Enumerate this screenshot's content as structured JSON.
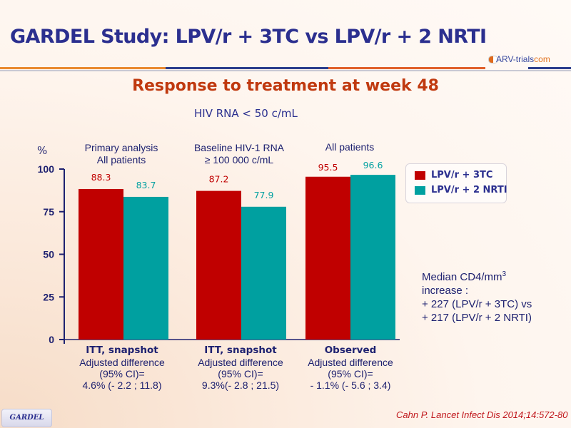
{
  "header": {
    "title": "GARDEL Study: LPV/r + 3TC vs LPV/r + 2 NRTI",
    "logo_text": "ARV-trials",
    "logo_suffix": "com"
  },
  "subtitle": "Response to treatment at week 48",
  "endpoint": "HIV RNA < 50 c/mL",
  "colors": {
    "title": "#2b2f8f",
    "subtitle": "#c0390f",
    "series_1": "#c00000",
    "series_2": "#00a0a0",
    "axis": "#1e2170",
    "rule_orange": "#e9892f",
    "rule_blue": "#2a3c8c"
  },
  "chart_data": {
    "type": "bar",
    "title": "Response to treatment at week 48",
    "subtitle": "HIV RNA < 50 c/mL",
    "ylabel": "%",
    "xlabel": "",
    "ylim": [
      0,
      100
    ],
    "yticks": [
      0,
      25,
      50,
      75,
      100
    ],
    "grid": false,
    "legend_position": "right",
    "group_titles": [
      [
        "Primary analysis",
        "All patients"
      ],
      [
        "Baseline HIV-1 RNA",
        "≥ 100 000 c/mL"
      ],
      [
        "All patients"
      ]
    ],
    "categories": [
      "ITT, snapshot",
      "ITT, snapshot",
      "Observed"
    ],
    "category_notes": [
      [
        "Adjusted difference",
        "(95% CI)=",
        "4.6% (- 2.2 ; 11.8)"
      ],
      [
        "Adjusted difference",
        "(95% CI)=",
        "9.3%(- 2.8 ; 21.5)"
      ],
      [
        "Adjusted difference",
        "(95% CI)=",
        "- 1.1% (- 5.6 ; 3.4)"
      ]
    ],
    "series": [
      {
        "name": "LPV/r + 3TC",
        "color": "#c00000",
        "values": [
          88.3,
          87.2,
          95.5
        ],
        "labels": [
          "88.3",
          "87.2",
          "95.5"
        ]
      },
      {
        "name": "LPV/r + 2 NRTI",
        "color": "#00a0a0",
        "values": [
          83.7,
          77.9,
          96.6
        ],
        "labels": [
          "83.7",
          "77.9",
          "96.6"
        ]
      }
    ]
  },
  "cd4_note": {
    "line1": "Median CD4/mm",
    "line1_sup": "3",
    "line2": "increase :",
    "line3": "+ 227 (LPV/r + 3TC) vs",
    "line4": "+ 217 (LPV/r + 2 NRTI)"
  },
  "footer": {
    "badge": "GARDEL",
    "citation": "Cahn P. Lancet Infect Dis 2014;14:572-80"
  }
}
